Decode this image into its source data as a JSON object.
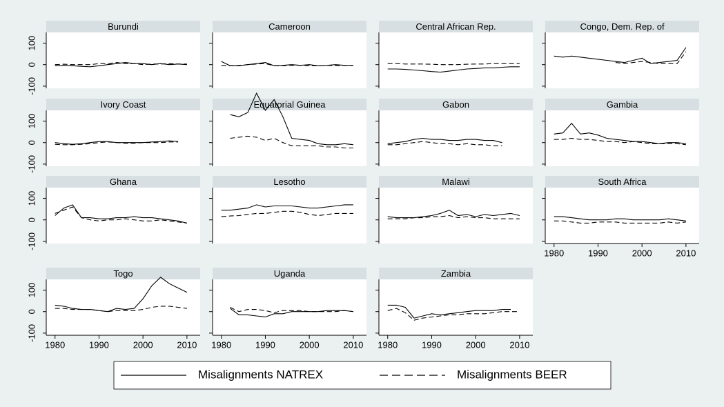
{
  "chart_data": {
    "type": "line",
    "x": [
      1980,
      1982,
      1984,
      1986,
      1988,
      1990,
      1992,
      1994,
      1996,
      1998,
      2000,
      2002,
      2004,
      2006,
      2008,
      2010
    ],
    "xlim": [
      1978,
      2013
    ],
    "xticks": [
      1980,
      1990,
      2000,
      2010
    ],
    "ylim": [
      -110,
      150
    ],
    "yticks": [
      100,
      0,
      -100
    ],
    "legend": [
      {
        "name": "Misalignments NATREX",
        "color": "#000000",
        "dash": false
      },
      {
        "name": "Misalignments BEER",
        "color": "#000000",
        "dash": true
      }
    ],
    "panels": [
      {
        "title": "Burundi",
        "series": [
          {
            "values": [
              -5,
              -3,
              -5,
              -8,
              -10,
              -5,
              0,
              5,
              10,
              5,
              5,
              0,
              5,
              0,
              3,
              0
            ]
          },
          {
            "values": [
              0,
              2,
              0,
              0,
              0,
              5,
              5,
              10,
              5,
              5,
              0,
              3,
              3,
              5,
              3,
              3
            ]
          }
        ]
      },
      {
        "title": "Cameroon",
        "series": [
          {
            "values": [
              15,
              -5,
              -5,
              0,
              5,
              10,
              -5,
              -3,
              0,
              -3,
              0,
              -5,
              -3,
              0,
              -3,
              -3
            ]
          },
          {
            "values": [
              -3,
              -5,
              -3,
              0,
              3,
              5,
              -5,
              -5,
              -3,
              -3,
              -5,
              -5,
              -3,
              -5,
              -3,
              -3
            ]
          }
        ]
      },
      {
        "title": "Central African Rep.",
        "series": [
          {
            "values": [
              -20,
              -20,
              -22,
              -25,
              -28,
              -32,
              -35,
              -30,
              -25,
              -20,
              -18,
              -15,
              -15,
              -12,
              -10,
              -10
            ]
          },
          {
            "values": [
              5,
              5,
              3,
              3,
              3,
              2,
              0,
              0,
              0,
              2,
              3,
              3,
              5,
              5,
              5,
              5
            ]
          }
        ]
      },
      {
        "title": "Congo, Dem. Rep. of",
        "series": [
          {
            "values": [
              40,
              35,
              40,
              35,
              30,
              25,
              20,
              15,
              10,
              20,
              30,
              5,
              10,
              15,
              20,
              80
            ]
          },
          {
            "values": [
              null,
              null,
              null,
              null,
              null,
              null,
              null,
              10,
              5,
              10,
              15,
              10,
              5,
              5,
              5,
              60
            ]
          }
        ]
      },
      {
        "title": "Ivory Coast",
        "series": [
          {
            "values": [
              0,
              -5,
              -8,
              -5,
              0,
              5,
              5,
              0,
              0,
              0,
              0,
              3,
              5,
              8,
              5,
              null
            ]
          },
          {
            "values": [
              -8,
              -10,
              -10,
              -8,
              -5,
              0,
              3,
              0,
              -3,
              -3,
              0,
              0,
              0,
              3,
              3,
              null
            ]
          }
        ]
      },
      {
        "title": "Equatorial Guinea",
        "series": [
          {
            "values": [
              null,
              130,
              120,
              140,
              230,
              150,
              200,
              120,
              20,
              15,
              10,
              -5,
              -10,
              -10,
              -5,
              -10
            ]
          },
          {
            "values": [
              null,
              20,
              25,
              30,
              25,
              10,
              20,
              0,
              -15,
              -15,
              -15,
              -15,
              -20,
              -20,
              -25,
              -25
            ]
          }
        ]
      },
      {
        "title": "Gabon",
        "series": [
          {
            "values": [
              -5,
              0,
              5,
              15,
              20,
              15,
              15,
              10,
              10,
              15,
              15,
              10,
              10,
              0,
              null,
              null
            ]
          },
          {
            "values": [
              -10,
              -10,
              -5,
              0,
              5,
              0,
              -5,
              -5,
              -10,
              -5,
              -10,
              -10,
              -15,
              -15,
              null,
              null
            ]
          }
        ]
      },
      {
        "title": "Gambia",
        "series": [
          {
            "values": [
              40,
              45,
              90,
              40,
              45,
              35,
              20,
              15,
              10,
              5,
              5,
              0,
              -5,
              0,
              0,
              -5
            ]
          },
          {
            "values": [
              15,
              15,
              20,
              15,
              15,
              10,
              5,
              5,
              0,
              5,
              0,
              -5,
              -5,
              -5,
              -5,
              -10
            ]
          }
        ]
      },
      {
        "title": "Ghana",
        "series": [
          {
            "values": [
              20,
              55,
              70,
              10,
              10,
              5,
              5,
              10,
              10,
              15,
              10,
              10,
              5,
              0,
              -5,
              -15
            ]
          },
          {
            "values": [
              30,
              45,
              60,
              10,
              0,
              -5,
              0,
              0,
              5,
              0,
              -5,
              -5,
              0,
              -5,
              -10,
              -15
            ]
          }
        ]
      },
      {
        "title": "Lesotho",
        "series": [
          {
            "values": [
              45,
              45,
              50,
              55,
              70,
              60,
              65,
              65,
              65,
              60,
              55,
              55,
              60,
              65,
              70,
              70
            ]
          },
          {
            "values": [
              15,
              18,
              20,
              25,
              30,
              30,
              35,
              40,
              40,
              35,
              25,
              20,
              25,
              30,
              30,
              30
            ]
          }
        ]
      },
      {
        "title": "Malawi",
        "series": [
          {
            "values": [
              15,
              10,
              10,
              10,
              15,
              20,
              30,
              45,
              20,
              25,
              15,
              25,
              20,
              25,
              30,
              20
            ]
          },
          {
            "values": [
              5,
              5,
              5,
              10,
              10,
              15,
              15,
              20,
              10,
              15,
              10,
              10,
              5,
              5,
              5,
              5
            ]
          }
        ]
      },
      {
        "title": "South Africa",
        "series": [
          {
            "values": [
              15,
              15,
              10,
              5,
              0,
              0,
              0,
              5,
              5,
              0,
              0,
              0,
              0,
              5,
              0,
              -5
            ]
          },
          {
            "values": [
              -5,
              -5,
              -10,
              -15,
              -15,
              -10,
              -10,
              -10,
              -15,
              -15,
              -15,
              -15,
              -15,
              -10,
              -15,
              -10
            ]
          }
        ]
      },
      {
        "title": "Togo",
        "series": [
          {
            "values": [
              30,
              25,
              15,
              10,
              10,
              5,
              0,
              15,
              10,
              15,
              60,
              120,
              160,
              130,
              110,
              90
            ]
          },
          {
            "values": [
              15,
              15,
              10,
              10,
              10,
              5,
              0,
              5,
              5,
              5,
              10,
              20,
              25,
              25,
              20,
              15
            ]
          }
        ]
      },
      {
        "title": "Uganda",
        "series": [
          {
            "values": [
              null,
              15,
              -15,
              -15,
              -20,
              -25,
              -10,
              -10,
              0,
              0,
              0,
              0,
              5,
              5,
              5,
              0
            ]
          },
          {
            "values": [
              null,
              20,
              0,
              10,
              10,
              5,
              -5,
              5,
              5,
              5,
              0,
              0,
              0,
              0,
              5,
              0
            ]
          }
        ]
      },
      {
        "title": "Zambia",
        "series": [
          {
            "values": [
              30,
              30,
              20,
              -30,
              -20,
              -10,
              -15,
              -10,
              -5,
              0,
              5,
              5,
              5,
              10,
              10,
              null
            ]
          },
          {
            "values": [
              5,
              15,
              -5,
              -40,
              -30,
              -25,
              -20,
              -15,
              -15,
              -10,
              -10,
              -10,
              -5,
              0,
              0,
              0
            ]
          }
        ]
      }
    ]
  }
}
